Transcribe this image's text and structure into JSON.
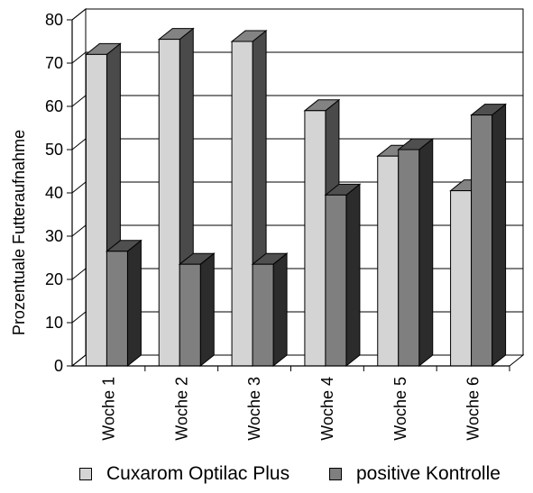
{
  "chart_data": {
    "type": "bar",
    "title": "",
    "xlabel": "",
    "ylabel": "Prozentuale Futteraufnahme",
    "ylim": [
      0,
      80
    ],
    "yticks": [
      0,
      10,
      20,
      30,
      40,
      50,
      60,
      70,
      80
    ],
    "categories": [
      "Woche 1",
      "Woche 2",
      "Woche 3",
      "Woche 4",
      "Woche 5",
      "Woche 6"
    ],
    "series": [
      {
        "name": "Cuxarom Optilac  Plus",
        "color": "#d4d4d4",
        "values": [
          72,
          75.5,
          75,
          59,
          48.5,
          40.5
        ]
      },
      {
        "name": "positive Kontrolle",
        "color": "#7f7f7f",
        "values": [
          26.5,
          23.5,
          23.5,
          39.5,
          50,
          58
        ]
      }
    ],
    "grid": true,
    "legend_position": "bottom",
    "style": "3d"
  }
}
